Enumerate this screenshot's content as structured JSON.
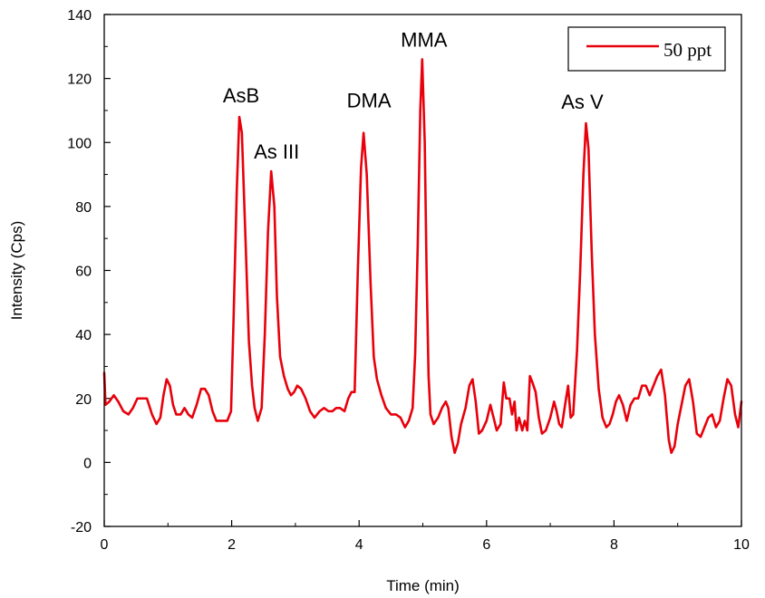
{
  "chart_data": {
    "type": "line",
    "title": "",
    "xlabel": "Time (min)",
    "ylabel": "Intensity (Cps)",
    "xlim": [
      0,
      10
    ],
    "ylim": [
      -20,
      140
    ],
    "x_ticks": [
      "0",
      "2",
      "4",
      "6",
      "8",
      "10"
    ],
    "y_ticks": [
      "-20",
      "0",
      "20",
      "40",
      "60",
      "80",
      "100",
      "120",
      "140"
    ],
    "grid": false,
    "legend_position": "top-right",
    "series": [
      {
        "name": "50 ppt",
        "color": "#e8000b",
        "points": [
          [
            0.0,
            28
          ],
          [
            0.02,
            18
          ],
          [
            0.08,
            19
          ],
          [
            0.15,
            21
          ],
          [
            0.22,
            19
          ],
          [
            0.3,
            16
          ],
          [
            0.38,
            15
          ],
          [
            0.45,
            17
          ],
          [
            0.52,
            20
          ],
          [
            0.6,
            20
          ],
          [
            0.67,
            20
          ],
          [
            0.75,
            15
          ],
          [
            0.82,
            12
          ],
          [
            0.88,
            14
          ],
          [
            0.93,
            21
          ],
          [
            0.98,
            26
          ],
          [
            1.03,
            24
          ],
          [
            1.08,
            18
          ],
          [
            1.13,
            15
          ],
          [
            1.2,
            15
          ],
          [
            1.26,
            17
          ],
          [
            1.32,
            15
          ],
          [
            1.38,
            14
          ],
          [
            1.45,
            18
          ],
          [
            1.52,
            23
          ],
          [
            1.58,
            23
          ],
          [
            1.64,
            21
          ],
          [
            1.7,
            16
          ],
          [
            1.76,
            13
          ],
          [
            1.84,
            13
          ],
          [
            1.93,
            13
          ],
          [
            1.99,
            16
          ],
          [
            2.03,
            45
          ],
          [
            2.08,
            85
          ],
          [
            2.12,
            108
          ],
          [
            2.16,
            103
          ],
          [
            2.22,
            68
          ],
          [
            2.27,
            38
          ],
          [
            2.32,
            24
          ],
          [
            2.36,
            17
          ],
          [
            2.41,
            13
          ],
          [
            2.47,
            17
          ],
          [
            2.52,
            40
          ],
          [
            2.57,
            72
          ],
          [
            2.62,
            91
          ],
          [
            2.67,
            80
          ],
          [
            2.71,
            52
          ],
          [
            2.76,
            33
          ],
          [
            2.82,
            27
          ],
          [
            2.88,
            23
          ],
          [
            2.93,
            21
          ],
          [
            2.98,
            22
          ],
          [
            3.03,
            24
          ],
          [
            3.09,
            23
          ],
          [
            3.16,
            20
          ],
          [
            3.23,
            16
          ],
          [
            3.3,
            14
          ],
          [
            3.38,
            16
          ],
          [
            3.45,
            17
          ],
          [
            3.52,
            16
          ],
          [
            3.58,
            16
          ],
          [
            3.64,
            17
          ],
          [
            3.7,
            17
          ],
          [
            3.77,
            16
          ],
          [
            3.83,
            20
          ],
          [
            3.88,
            22
          ],
          [
            3.93,
            22
          ],
          [
            3.98,
            60
          ],
          [
            4.03,
            92
          ],
          [
            4.07,
            103
          ],
          [
            4.12,
            90
          ],
          [
            4.18,
            56
          ],
          [
            4.23,
            33
          ],
          [
            4.28,
            26
          ],
          [
            4.35,
            21
          ],
          [
            4.42,
            17
          ],
          [
            4.5,
            15
          ],
          [
            4.58,
            15
          ],
          [
            4.65,
            14
          ],
          [
            4.72,
            11
          ],
          [
            4.78,
            13
          ],
          [
            4.84,
            17
          ],
          [
            4.88,
            34
          ],
          [
            4.92,
            68
          ],
          [
            4.96,
            110
          ],
          [
            4.99,
            126
          ],
          [
            5.03,
            100
          ],
          [
            5.06,
            58
          ],
          [
            5.09,
            27
          ],
          [
            5.12,
            15
          ],
          [
            5.17,
            12
          ],
          [
            5.24,
            14
          ],
          [
            5.3,
            17
          ],
          [
            5.36,
            19
          ],
          [
            5.4,
            17
          ],
          [
            5.45,
            8
          ],
          [
            5.5,
            3
          ],
          [
            5.55,
            6
          ],
          [
            5.6,
            12
          ],
          [
            5.67,
            17
          ],
          [
            5.73,
            24
          ],
          [
            5.78,
            26
          ],
          [
            5.83,
            19
          ],
          [
            5.88,
            9
          ],
          [
            5.93,
            10
          ],
          [
            6.0,
            13
          ],
          [
            6.06,
            18
          ],
          [
            6.11,
            14
          ],
          [
            6.16,
            10
          ],
          [
            6.22,
            12
          ],
          [
            6.27,
            25
          ],
          [
            6.31,
            20
          ],
          [
            6.36,
            20
          ],
          [
            6.4,
            15
          ],
          [
            6.44,
            19
          ],
          [
            6.47,
            10
          ],
          [
            6.51,
            14
          ],
          [
            6.56,
            10
          ],
          [
            6.6,
            13
          ],
          [
            6.64,
            10
          ],
          [
            6.68,
            27
          ],
          [
            6.72,
            25
          ],
          [
            6.77,
            22
          ],
          [
            6.82,
            14
          ],
          [
            6.87,
            9
          ],
          [
            6.93,
            10
          ],
          [
            7.0,
            14
          ],
          [
            7.06,
            19
          ],
          [
            7.1,
            16
          ],
          [
            7.14,
            12
          ],
          [
            7.18,
            11
          ],
          [
            7.24,
            19
          ],
          [
            7.28,
            24
          ],
          [
            7.32,
            14
          ],
          [
            7.36,
            15
          ],
          [
            7.42,
            35
          ],
          [
            7.47,
            60
          ],
          [
            7.52,
            90
          ],
          [
            7.56,
            106
          ],
          [
            7.6,
            98
          ],
          [
            7.65,
            66
          ],
          [
            7.7,
            40
          ],
          [
            7.76,
            23
          ],
          [
            7.82,
            14
          ],
          [
            7.88,
            11
          ],
          [
            7.93,
            12
          ],
          [
            7.98,
            15
          ],
          [
            8.03,
            19
          ],
          [
            8.08,
            21
          ],
          [
            8.14,
            18
          ],
          [
            8.2,
            13
          ],
          [
            8.26,
            18
          ],
          [
            8.32,
            20
          ],
          [
            8.38,
            20
          ],
          [
            8.44,
            24
          ],
          [
            8.5,
            24
          ],
          [
            8.56,
            21
          ],
          [
            8.62,
            24
          ],
          [
            8.68,
            27
          ],
          [
            8.74,
            29
          ],
          [
            8.8,
            21
          ],
          [
            8.86,
            7
          ],
          [
            8.9,
            3
          ],
          [
            8.95,
            5
          ],
          [
            9.0,
            12
          ],
          [
            9.06,
            18
          ],
          [
            9.12,
            24
          ],
          [
            9.18,
            26
          ],
          [
            9.24,
            19
          ],
          [
            9.3,
            9
          ],
          [
            9.36,
            8
          ],
          [
            9.42,
            11
          ],
          [
            9.48,
            14
          ],
          [
            9.54,
            15
          ],
          [
            9.6,
            11
          ],
          [
            9.66,
            13
          ],
          [
            9.72,
            20
          ],
          [
            9.78,
            26
          ],
          [
            9.84,
            24
          ],
          [
            9.9,
            15
          ],
          [
            9.95,
            11
          ],
          [
            10.0,
            19
          ]
        ]
      }
    ],
    "annotations": [
      {
        "text": "AsB",
        "x": 2.12,
        "y": 108
      },
      {
        "text": "As III",
        "x": 2.62,
        "y": 91
      },
      {
        "text": "DMA",
        "x": 4.07,
        "y": 103
      },
      {
        "text": "MMA",
        "x": 4.99,
        "y": 126
      },
      {
        "text": "As V",
        "x": 7.56,
        "y": 106
      }
    ]
  }
}
